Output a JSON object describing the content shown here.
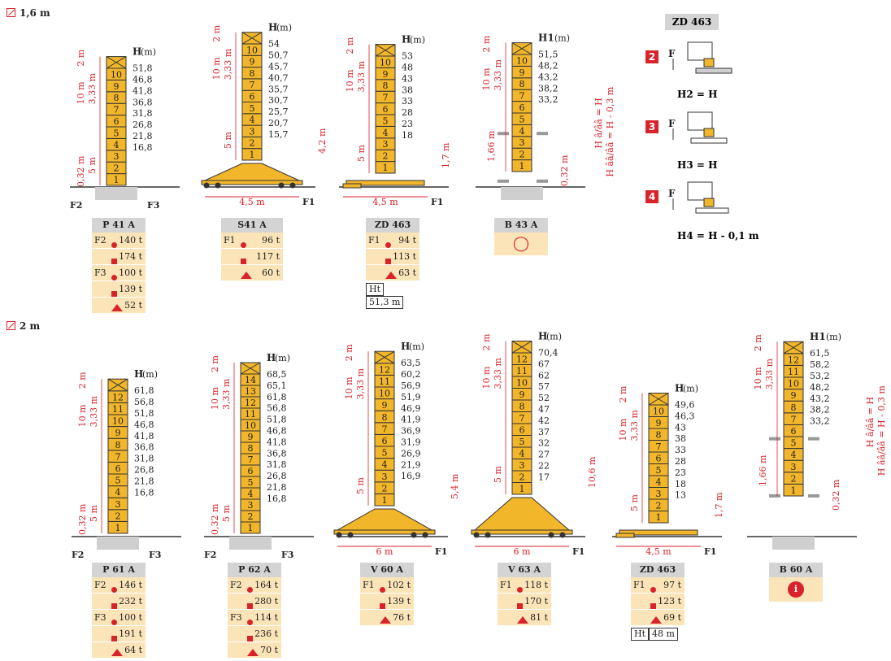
{
  "sections": [
    {
      "label": "1,6 m"
    },
    {
      "label": "2 m"
    }
  ],
  "common": {
    "hlabel": "H",
    "hunit": "(m)",
    "h1label": "H1",
    "lbl10": "10 m",
    "lbl333": "3,33 m",
    "lbl5": "5 m",
    "lbl2": "2 m",
    "lbl032": "0,32 m",
    "lbl166": "1,66 m",
    "f1": "F1",
    "f2": "F2",
    "f3": "F3",
    "ht": "Ht"
  },
  "towers": [
    {
      "id": "p41a",
      "name": "P 41 A",
      "type": "post",
      "n": 10,
      "heights": [
        "51,8",
        "46,8",
        "41,8",
        "36,8",
        "31,8",
        "26,8",
        "21,8",
        "16,8"
      ],
      "rows": [
        [
          "F2",
          "dot",
          "140 t"
        ],
        [
          "",
          "sq",
          "174 t"
        ],
        [
          "F3",
          "dot",
          "100 t"
        ],
        [
          "",
          "sq",
          "139 t"
        ],
        [
          "",
          "tri",
          "52 t"
        ]
      ]
    },
    {
      "id": "s41a",
      "name": "S41 A",
      "type": "chassis",
      "n": 10,
      "heights": [
        "54",
        "50,7",
        "45,7",
        "40,7",
        "35,7",
        "30,7",
        "25,7",
        "20,7",
        "15,7"
      ],
      "base": "4,5 m",
      "side": "4,2 m",
      "rows": [
        [
          "F1",
          "dot",
          "96 t"
        ],
        [
          "",
          "sq",
          "117 t"
        ],
        [
          "",
          "tri",
          "60 t"
        ]
      ]
    },
    {
      "id": "zd463a",
      "name": "ZD 463",
      "type": "ballast",
      "n": 10,
      "heights": [
        "53",
        "48",
        "43",
        "38",
        "33",
        "28",
        "23",
        "18"
      ],
      "base": "4,5 m",
      "side": "1,7 m",
      "rows": [
        [
          "F1",
          "dot",
          "94 t"
        ],
        [
          "",
          "sq",
          "113 t"
        ],
        [
          "",
          "tri",
          "63 t"
        ]
      ],
      "ht": "51,3 m"
    },
    {
      "id": "b43a",
      "name": "B 43 A",
      "type": "building",
      "n": 10,
      "heights": [
        "51,5",
        "48,2",
        "43,2",
        "38,2",
        "33,2"
      ],
      "side1": "H â/ââ = H",
      "side2": "H ââ/ââ = H - 0,3 m"
    },
    {
      "id": "p61a",
      "name": "P 61 A",
      "type": "post",
      "n": 12,
      "heights": [
        "61,8",
        "56,8",
        "51,8",
        "46,8",
        "41,8",
        "36,8",
        "31,8",
        "26,8",
        "21,8",
        "16,8"
      ],
      "rows": [
        [
          "F2",
          "dot",
          "146 t"
        ],
        [
          "",
          "sq",
          "232 t"
        ],
        [
          "F3",
          "dot",
          "100 t"
        ],
        [
          "",
          "sq",
          "191 t"
        ],
        [
          "",
          "tri",
          "64 t"
        ]
      ]
    },
    {
      "id": "p62a",
      "name": "P 62 A",
      "type": "post",
      "n": 14,
      "heights": [
        "68,5",
        "65,1",
        "61,8",
        "56,8",
        "51,8",
        "46,8",
        "41,8",
        "36,8",
        "31,8",
        "26,8",
        "21,8",
        "16,8"
      ],
      "rows": [
        [
          "F2",
          "dot",
          "164 t"
        ],
        [
          "",
          "sq",
          "280 t"
        ],
        [
          "F3",
          "dot",
          "114 t"
        ],
        [
          "",
          "sq",
          "236 t"
        ],
        [
          "",
          "tri",
          "70 t"
        ]
      ]
    },
    {
      "id": "v60a",
      "name": "V 60 A",
      "type": "chassis",
      "n": 12,
      "heights": [
        "63,5",
        "60,2",
        "56,9",
        "51,9",
        "46,9",
        "41,9",
        "36,9",
        "31,9",
        "26,9",
        "21,9",
        "16,9"
      ],
      "base": "6 m",
      "side": "5,4 m",
      "rows": [
        [
          "F1",
          "dot",
          "102 t"
        ],
        [
          "",
          "sq",
          "139 t"
        ],
        [
          "",
          "tri",
          "76 t"
        ]
      ]
    },
    {
      "id": "v63a",
      "name": "V 63 A",
      "type": "chassis",
      "n": 12,
      "heights": [
        "70,4",
        "67",
        "62",
        "57",
        "52",
        "47",
        "42",
        "37",
        "32",
        "27",
        "22",
        "17"
      ],
      "base": "6 m",
      "side": "10,6 m",
      "rows": [
        [
          "F1",
          "dot",
          "118 t"
        ],
        [
          "",
          "sq",
          "170 t"
        ],
        [
          "",
          "tri",
          "81 t"
        ]
      ]
    },
    {
      "id": "zd463b",
      "name": "ZD 463",
      "type": "ballast",
      "n": 10,
      "heights": [
        "49,6",
        "46,3",
        "43",
        "38",
        "33",
        "28",
        "23",
        "18",
        "13"
      ],
      "base": "4,5 m",
      "side": "1,7 m",
      "rows": [
        [
          "F1",
          "dot",
          "97 t"
        ],
        [
          "",
          "sq",
          "123 t"
        ],
        [
          "",
          "tri",
          "69 t"
        ]
      ],
      "ht": "48 m"
    },
    {
      "id": "b60a",
      "name": "B 60 A",
      "type": "building",
      "n": 12,
      "heights": [
        "61,5",
        "58,2",
        "53,2",
        "48,2",
        "43,2",
        "38,2",
        "33,2"
      ],
      "side1": "H â/ââ = H",
      "side2": "H ââ/ââ = H - 0,3 m"
    }
  ],
  "zd": {
    "title": "ZD 463",
    "items": [
      {
        "num": "2",
        "eq": "H2 = H"
      },
      {
        "num": "3",
        "eq": "H3 = H"
      },
      {
        "num": "4",
        "eq": "H4 = H - 0,1 m"
      }
    ],
    "force": "F"
  },
  "colors": {
    "mast": "#f2b62b",
    "red": "#d9222a",
    "panel": "#fbe4b8",
    "grey": "#cfcfcf"
  }
}
